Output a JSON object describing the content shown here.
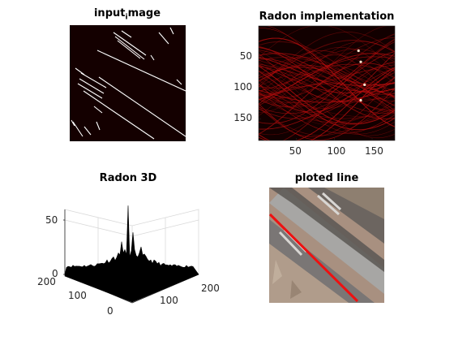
{
  "chart_data": [
    {
      "type": "heatmap",
      "title_main": "input",
      "title_sub": "i",
      "title_tail": "mage",
      "colormap": "hot",
      "background": "#140000",
      "foreground": "#ffffff",
      "axes_visible": false
    },
    {
      "type": "heatmap",
      "title": "Radon implementation",
      "colormap": "hot",
      "x_ticks": [
        50,
        100,
        150
      ],
      "y_ticks": [
        50,
        100,
        150
      ],
      "xlim": [
        0,
        180
      ],
      "ylim": [
        0,
        185
      ],
      "background": "#120000",
      "line_color": "#b80d0d"
    },
    {
      "type": "surface",
      "title": "Radon 3D",
      "z_ticks": [
        0,
        50
      ],
      "x_ticks": [
        0,
        100,
        200
      ],
      "y_ticks": [
        0,
        100,
        200
      ],
      "zlim": [
        0,
        60
      ],
      "grid": true,
      "surface_color": "#000000"
    },
    {
      "type": "image",
      "title": "ploted line",
      "line_color": "#ee1111",
      "axes_visible": false
    }
  ]
}
